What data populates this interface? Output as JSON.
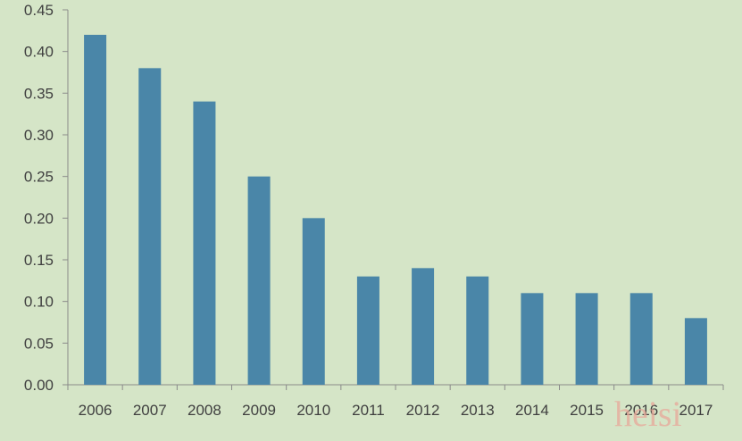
{
  "chart_data": {
    "type": "bar",
    "title": "",
    "xlabel": "",
    "ylabel": "",
    "categories": [
      "2006",
      "2007",
      "2008",
      "2009",
      "2010",
      "2011",
      "2012",
      "2013",
      "2014",
      "2015",
      "2016",
      "2017"
    ],
    "values": [
      0.42,
      0.38,
      0.34,
      0.25,
      0.2,
      0.13,
      0.14,
      0.13,
      0.11,
      0.11,
      0.11,
      0.08
    ],
    "ylim": [
      0,
      0.45
    ],
    "yticks": [
      "0.00",
      "0.05",
      "0.10",
      "0.15",
      "0.20",
      "0.25",
      "0.30",
      "0.35",
      "0.40",
      "0.45"
    ],
    "grid": false,
    "legend": "none",
    "bar_color": "#4a86a8",
    "axis_color": "#8a8a8a",
    "background": "#d5e5c7"
  },
  "watermark": "heisi"
}
